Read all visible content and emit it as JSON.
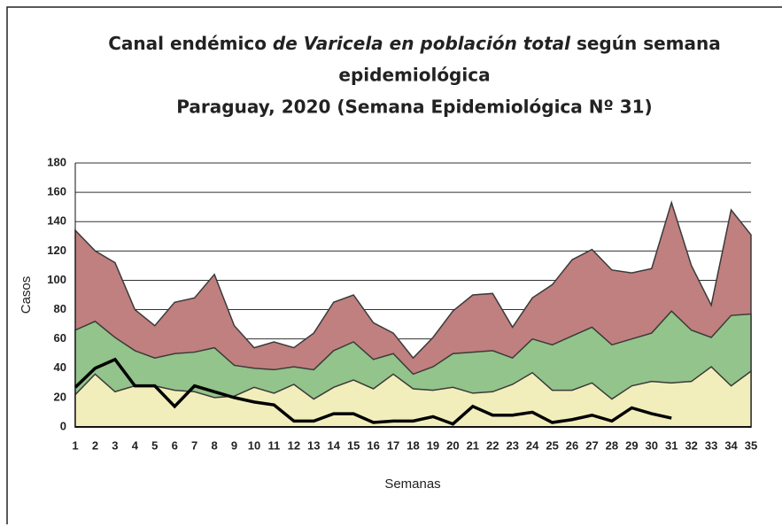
{
  "chart_data": {
    "type": "area",
    "title": [
      "Canal endémico ",
      "de Varicela en población total",
      " según semana",
      "epidemiológica",
      "Paraguay, 2020 (Semana Epidemiológica Nº 31)"
    ],
    "xlabel": "Semanas",
    "ylabel": "Casos",
    "x": [
      1,
      2,
      3,
      4,
      5,
      6,
      7,
      8,
      9,
      10,
      11,
      12,
      13,
      14,
      15,
      16,
      17,
      18,
      19,
      20,
      21,
      22,
      23,
      24,
      25,
      26,
      27,
      28,
      29,
      30,
      31,
      32,
      33,
      34,
      35
    ],
    "xlim": [
      1,
      35
    ],
    "ylim": [
      0,
      180
    ],
    "yticks": [
      0,
      20,
      40,
      60,
      80,
      100,
      120,
      140,
      160,
      180
    ],
    "grid": true,
    "series": [
      {
        "color": "#c0807f",
        "values": [
          134,
          120,
          112,
          80,
          69,
          85,
          88,
          104,
          69,
          54,
          58,
          54,
          64,
          85,
          90,
          71,
          64,
          47,
          61,
          79,
          90,
          91,
          68,
          88,
          97,
          114,
          121,
          107,
          105,
          108,
          153,
          110,
          83,
          148,
          131
        ]
      },
      {
        "color": "#93c48b",
        "values": [
          66,
          72,
          61,
          52,
          47,
          50,
          51,
          54,
          42,
          40,
          39,
          41,
          39,
          52,
          58,
          46,
          50,
          36,
          41,
          50,
          51,
          52,
          47,
          60,
          56,
          62,
          68,
          56,
          60,
          64,
          79,
          66,
          61,
          76,
          77
        ]
      },
      {
        "color": "#f2eebb",
        "values": [
          22,
          36,
          24,
          28,
          28,
          25,
          24,
          20,
          21,
          27,
          23,
          29,
          19,
          27,
          32,
          26,
          36,
          26,
          25,
          27,
          23,
          24,
          29,
          37,
          25,
          25,
          30,
          19,
          28,
          31,
          30,
          31,
          41,
          28,
          38
        ]
      },
      {
        "type": "line",
        "color": "#000000",
        "values": [
          27,
          40,
          46,
          28,
          28,
          14,
          28,
          24,
          20,
          17,
          15,
          4,
          4,
          9,
          9,
          3,
          4,
          4,
          7,
          2,
          14,
          8,
          8,
          10,
          3,
          5,
          8,
          4,
          13,
          9,
          6,
          null,
          null,
          null,
          null
        ]
      }
    ]
  }
}
